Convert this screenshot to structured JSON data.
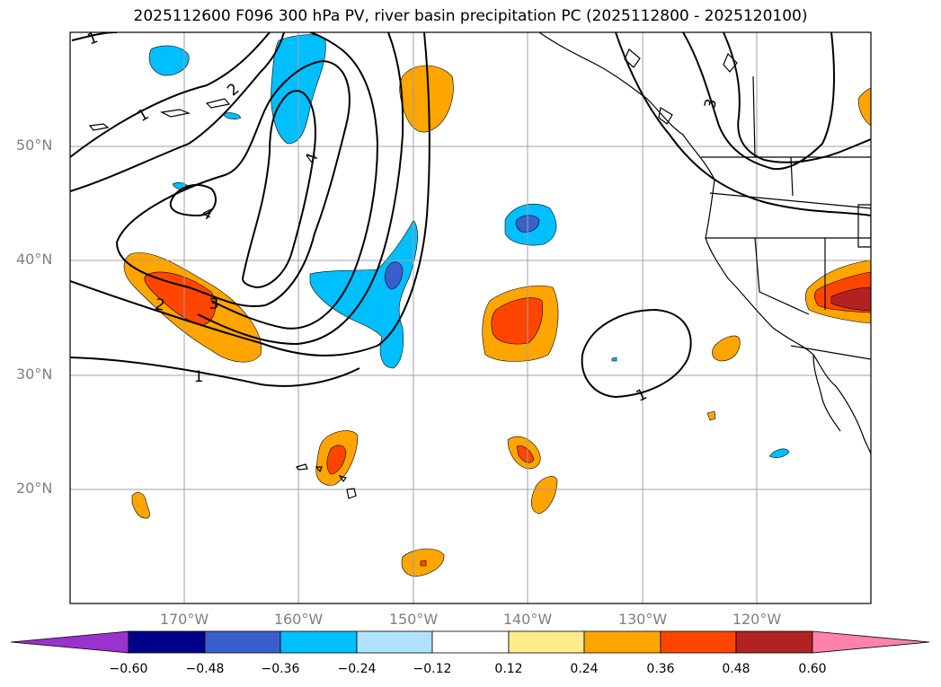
{
  "title": "2025112600 F096 300 hPa PV, river basin precipitation PC (2025112800 - 2025120100)",
  "axes": {
    "lat_labels": [
      "50°N",
      "40°N",
      "30°N",
      "20°N"
    ],
    "lon_labels": [
      "170°W",
      "160°W",
      "150°W",
      "140°W",
      "130°W",
      "120°W"
    ]
  },
  "contour_labels": [
    "1",
    "2",
    "3",
    "4",
    "4",
    "2",
    "3",
    "1",
    "1",
    "3",
    "1",
    "2"
  ],
  "colorbar": {
    "colors": [
      "#9a32cd",
      "#00008b",
      "#3a5fcd",
      "#00bfff",
      "#b0e2ff",
      "#ffffff",
      "#ffec8b",
      "#ffa500",
      "#ff4500",
      "#b22222",
      "#ff82ab"
    ],
    "tick_labels": [
      "−0.60",
      "−0.48",
      "−0.36",
      "−0.24",
      "−0.12",
      "0.12",
      "0.24",
      "0.36",
      "0.48",
      "0.60"
    ]
  },
  "palette": {
    "orange": "#ffa500",
    "red_orange": "#ff4500",
    "dark_red": "#b22222",
    "cyan": "#00bfff",
    "royal_blue": "#3a5fcd"
  }
}
